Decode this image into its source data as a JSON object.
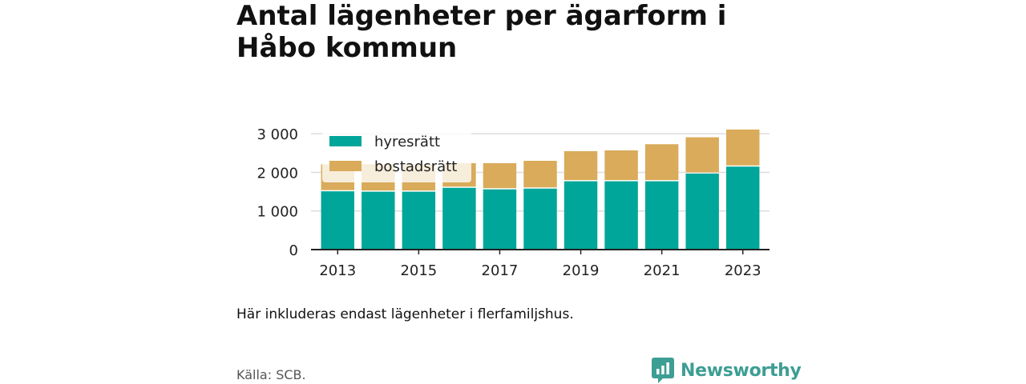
{
  "header": {
    "title": "Antal lägenheter per ägarform i Håbo kommun"
  },
  "chart_data": {
    "type": "bar",
    "stacked": true,
    "title": "Antal lägenheter per ägarform i Håbo kommun",
    "categories": [
      "2013",
      "2014",
      "2015",
      "2016",
      "2017",
      "2018",
      "2019",
      "2020",
      "2021",
      "2022",
      "2023"
    ],
    "x_tick_labels": [
      "2013",
      "2015",
      "2017",
      "2019",
      "2021",
      "2023"
    ],
    "y_tick_labels": [
      "0",
      "1 000",
      "2 000",
      "3 000"
    ],
    "y_ticks": [
      0,
      1000,
      2000,
      3000
    ],
    "ylim": [
      0,
      3150
    ],
    "grid": true,
    "legend_position": "top-left",
    "series": [
      {
        "name": "hyresrätt",
        "color": "#00a699",
        "values": [
          1510,
          1500,
          1500,
          1600,
          1560,
          1580,
          1770,
          1770,
          1770,
          1970,
          2150
        ]
      },
      {
        "name": "bostadsrätt",
        "color": "#d9ab5a",
        "values": [
          700,
          710,
          700,
          640,
          680,
          720,
          780,
          800,
          960,
          940,
          960
        ]
      }
    ]
  },
  "footer": {
    "note": "Här inkluderas endast lägenheter i flerfamiljshus.",
    "source": "Källa: SCB.",
    "brand": "Newsworthy"
  }
}
